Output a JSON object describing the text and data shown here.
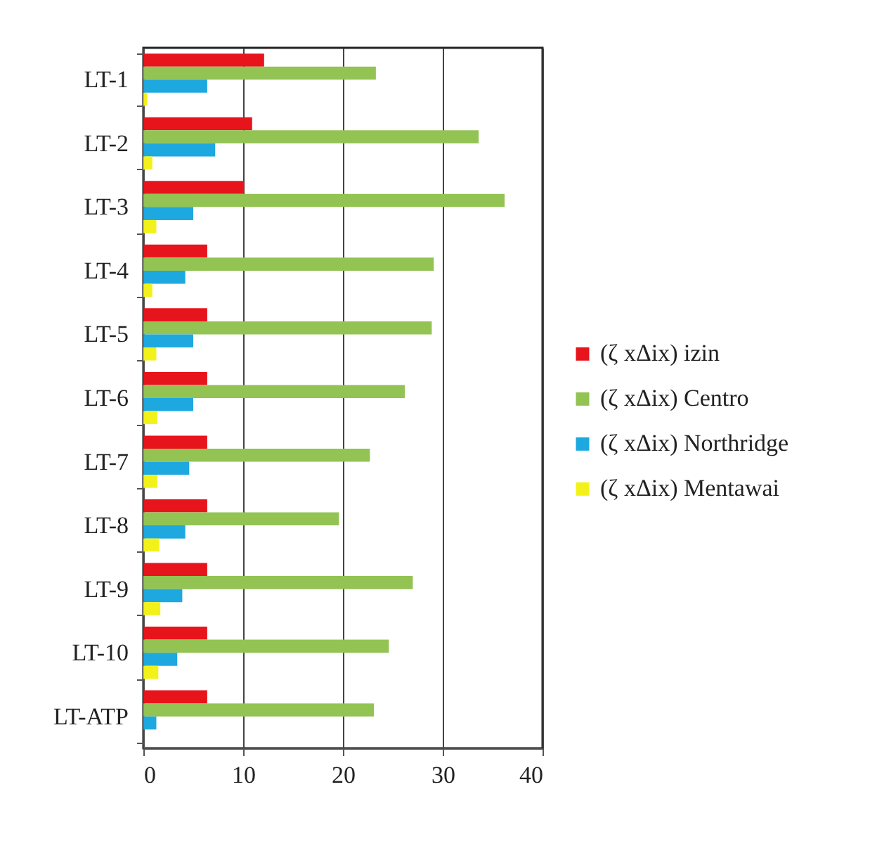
{
  "chart_data": {
    "type": "bar",
    "orientation": "horizontal",
    "categories": [
      "LT-1",
      "LT-2",
      "LT-3",
      "LT-4",
      "LT-5",
      "LT-6",
      "LT-7",
      "LT-8",
      "LT-9",
      "LT-10",
      "LT-ATP"
    ],
    "series": [
      {
        "name": "(ζ xΔix) izin",
        "color": "#e8141c",
        "values": [
          12.1,
          10.9,
          10.1,
          6.4,
          6.4,
          6.4,
          6.4,
          6.4,
          6.4,
          6.4,
          6.4
        ]
      },
      {
        "name": "(ζ xΔix) Centro",
        "color": "#92c353",
        "values": [
          23.3,
          33.6,
          36.2,
          29.1,
          28.9,
          26.2,
          22.7,
          19.6,
          27.0,
          24.6,
          23.1
        ]
      },
      {
        "name": "(ζ xΔix) Northridge",
        "color": "#1ea8e0",
        "values": [
          6.4,
          7.2,
          5.0,
          4.2,
          5.0,
          5.0,
          4.6,
          4.2,
          3.9,
          3.4,
          1.3
        ]
      },
      {
        "name": "(ζ xΔix) Mentawai",
        "color": "#f2f21a",
        "values": [
          0.4,
          0.9,
          1.3,
          0.9,
          1.3,
          1.4,
          1.4,
          1.6,
          1.7,
          1.5,
          0
        ]
      }
    ],
    "xlim": [
      0,
      40
    ],
    "xticks": [
      0,
      10,
      20,
      30,
      40
    ],
    "grid": "x",
    "legend": "right"
  }
}
